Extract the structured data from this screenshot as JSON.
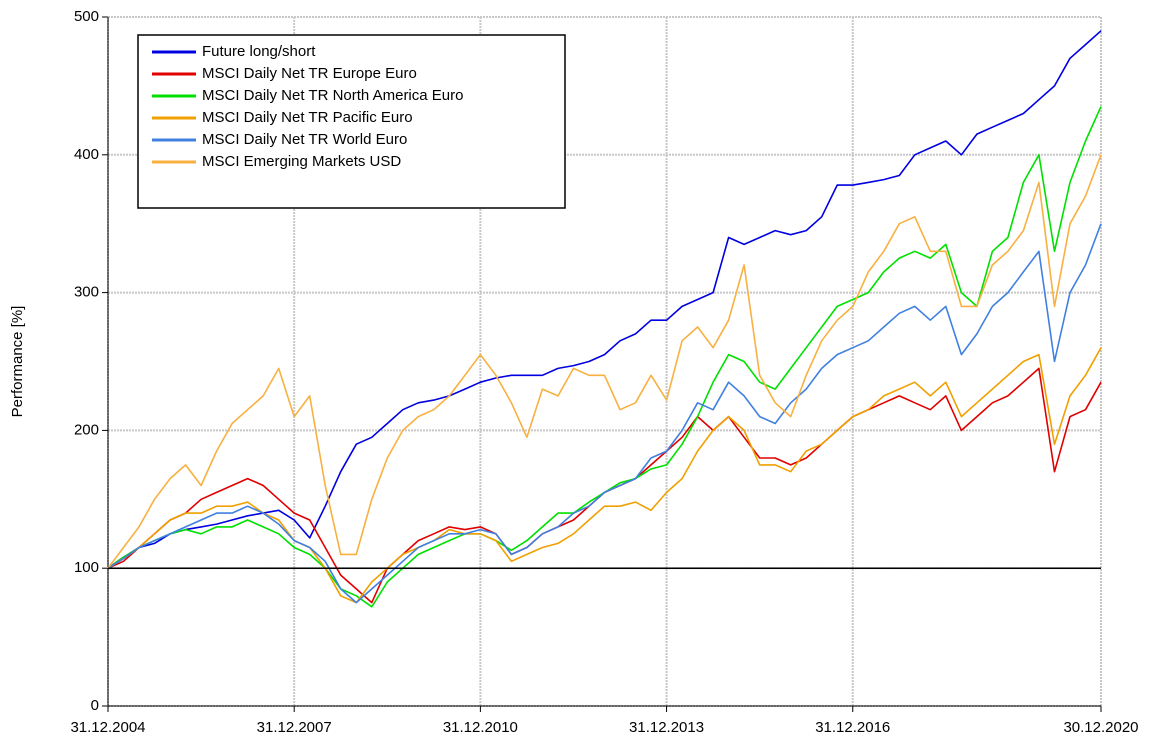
{
  "chart_data": {
    "type": "line",
    "ylabel": "Performance [%]",
    "x": [
      2005,
      2005.25,
      2005.5,
      2005.75,
      2006,
      2006.25,
      2006.5,
      2006.75,
      2007,
      2007.25,
      2007.5,
      2007.75,
      2008,
      2008.25,
      2008.5,
      2008.75,
      2009,
      2009.25,
      2009.5,
      2009.75,
      2010,
      2010.25,
      2010.5,
      2010.75,
      2011,
      2011.25,
      2011.5,
      2011.75,
      2012,
      2012.25,
      2012.5,
      2012.75,
      2013,
      2013.25,
      2013.5,
      2013.75,
      2014,
      2014.25,
      2014.5,
      2014.75,
      2015,
      2015.25,
      2015.5,
      2015.75,
      2016,
      2016.25,
      2016.5,
      2016.75,
      2017,
      2017.25,
      2017.5,
      2017.75,
      2018,
      2018.25,
      2018.5,
      2018.75,
      2019,
      2019.25,
      2019.5,
      2019.75,
      2020,
      2020.25,
      2020.5,
      2020.75,
      2021
    ],
    "series": [
      {
        "name": "Future long/short",
        "color": "#0000e0",
        "values": [
          100,
          108,
          115,
          118,
          125,
          128,
          130,
          132,
          135,
          138,
          140,
          142,
          135,
          122,
          145,
          170,
          190,
          195,
          205,
          215,
          220,
          222,
          225,
          230,
          235,
          238,
          240,
          240,
          240,
          245,
          247,
          250,
          255,
          265,
          270,
          280,
          280,
          290,
          295,
          300,
          340,
          335,
          340,
          345,
          342,
          345,
          355,
          378,
          378,
          380,
          382,
          385,
          400,
          405,
          410,
          400,
          415,
          420,
          425,
          430,
          440,
          450,
          470,
          480,
          490
        ]
      },
      {
        "name": "MSCI Daily Net TR Europe Euro",
        "color": "#e00000",
        "values": [
          100,
          105,
          115,
          125,
          135,
          140,
          150,
          155,
          160,
          165,
          160,
          150,
          140,
          135,
          115,
          95,
          85,
          75,
          100,
          110,
          120,
          125,
          130,
          128,
          130,
          125,
          110,
          115,
          125,
          130,
          135,
          145,
          155,
          160,
          165,
          175,
          185,
          195,
          210,
          200,
          210,
          195,
          180,
          180,
          175,
          180,
          190,
          200,
          210,
          215,
          220,
          225,
          220,
          215,
          225,
          200,
          210,
          220,
          225,
          235,
          245,
          170,
          210,
          215,
          235
        ]
      },
      {
        "name": "MSCI Daily Net TR North America Euro",
        "color": "#00e000",
        "values": [
          100,
          108,
          115,
          120,
          125,
          128,
          125,
          130,
          130,
          135,
          130,
          125,
          115,
          110,
          100,
          85,
          80,
          72,
          90,
          100,
          110,
          115,
          120,
          125,
          125,
          120,
          113,
          120,
          130,
          140,
          140,
          148,
          155,
          162,
          165,
          172,
          175,
          190,
          210,
          235,
          255,
          250,
          235,
          230,
          245,
          260,
          275,
          290,
          295,
          300,
          315,
          325,
          330,
          325,
          335,
          300,
          290,
          330,
          340,
          380,
          400,
          330,
          380,
          410,
          435
        ]
      },
      {
        "name": "MSCI Daily Net TR Pacific Euro",
        "color": "#f0a000",
        "values": [
          100,
          107,
          115,
          125,
          135,
          140,
          140,
          145,
          145,
          148,
          140,
          135,
          120,
          115,
          100,
          80,
          75,
          90,
          100,
          110,
          115,
          120,
          128,
          125,
          125,
          120,
          105,
          110,
          115,
          118,
          125,
          135,
          145,
          145,
          148,
          142,
          155,
          165,
          185,
          200,
          210,
          200,
          175,
          175,
          170,
          185,
          190,
          200,
          210,
          215,
          225,
          230,
          235,
          225,
          235,
          210,
          220,
          230,
          240,
          250,
          255,
          190,
          225,
          240,
          260
        ]
      },
      {
        "name": "MSCI Daily Net TR World Euro",
        "color": "#4080e0",
        "values": [
          100,
          107,
          115,
          120,
          125,
          130,
          135,
          140,
          140,
          145,
          140,
          132,
          120,
          115,
          105,
          85,
          75,
          85,
          95,
          105,
          115,
          120,
          125,
          125,
          128,
          125,
          110,
          115,
          125,
          130,
          140,
          145,
          155,
          160,
          165,
          180,
          185,
          200,
          220,
          215,
          235,
          225,
          210,
          205,
          220,
          230,
          245,
          255,
          260,
          265,
          275,
          285,
          290,
          280,
          290,
          255,
          270,
          290,
          300,
          315,
          330,
          250,
          300,
          320,
          350
        ]
      },
      {
        "name": "MSCI Emerging Markets USD",
        "color": "#f8b040",
        "values": [
          100,
          115,
          130,
          150,
          165,
          175,
          160,
          185,
          205,
          215,
          225,
          245,
          210,
          225,
          160,
          110,
          110,
          150,
          180,
          200,
          210,
          215,
          225,
          240,
          255,
          240,
          220,
          195,
          230,
          225,
          245,
          240,
          240,
          215,
          220,
          240,
          222,
          265,
          275,
          260,
          280,
          320,
          240,
          220,
          210,
          240,
          265,
          280,
          290,
          315,
          330,
          350,
          355,
          330,
          330,
          290,
          290,
          320,
          330,
          345,
          380,
          290,
          350,
          370,
          400
        ]
      }
    ],
    "xlim": [
      2005,
      2021
    ],
    "xticks": [
      {
        "value": 2005,
        "label": "31.12.2004"
      },
      {
        "value": 2008,
        "label": "31.12.2007"
      },
      {
        "value": 2011,
        "label": "31.12.2010"
      },
      {
        "value": 2014,
        "label": "31.12.2013"
      },
      {
        "value": 2017,
        "label": "31.12.2016"
      },
      {
        "value": 2021,
        "label": "30.12.2020"
      }
    ],
    "ylim": [
      0,
      500
    ],
    "yticks": [
      0,
      100,
      200,
      300,
      400,
      500
    ],
    "hline": 100,
    "grid": true,
    "legend": "upper left"
  }
}
